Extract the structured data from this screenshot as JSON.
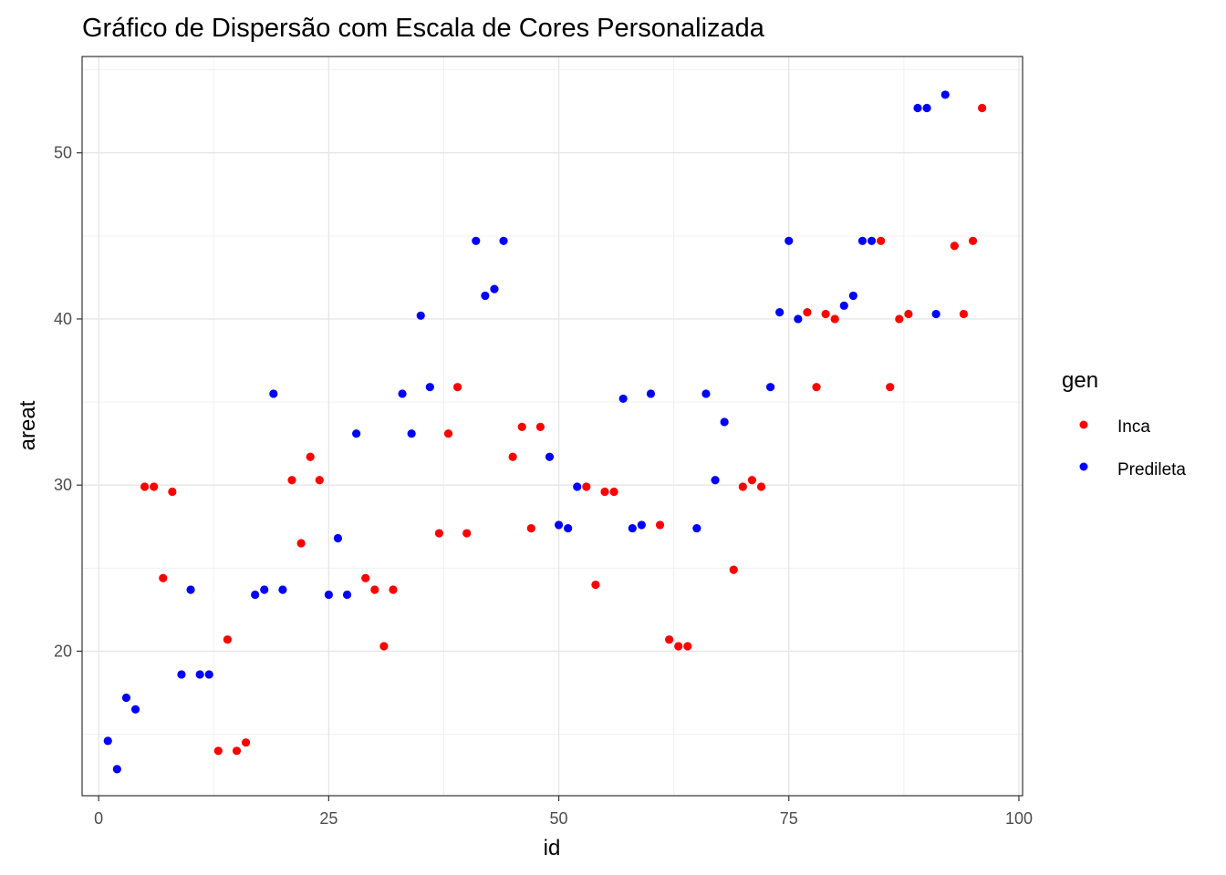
{
  "chart_data": {
    "type": "scatter",
    "title": "Gráfico de Dispersão com Escala de Cores Personalizada",
    "xlabel": "id",
    "ylabel": "areat",
    "xlim": [
      -1.8,
      100.4
    ],
    "ylim": [
      11.3,
      55.8
    ],
    "x_ticks": [
      0,
      25,
      50,
      75,
      100
    ],
    "x_tick_labels": [
      "0",
      "25",
      "50",
      "75",
      "100"
    ],
    "y_ticks": [
      20,
      30,
      40,
      50
    ],
    "y_tick_labels": [
      "20",
      "30",
      "40",
      "50"
    ],
    "grid": true,
    "legend": {
      "title": "gen",
      "position": "right"
    },
    "series": [
      {
        "name": "Inca",
        "color": "#ff0000",
        "points": [
          [
            5,
            29.9
          ],
          [
            6,
            29.9
          ],
          [
            7,
            24.4
          ],
          [
            8,
            29.6
          ],
          [
            13,
            14.0
          ],
          [
            14,
            20.7
          ],
          [
            15,
            14.0
          ],
          [
            16,
            14.5
          ],
          [
            21,
            30.3
          ],
          [
            22,
            26.5
          ],
          [
            23,
            31.7
          ],
          [
            24,
            30.3
          ],
          [
            29,
            24.4
          ],
          [
            30,
            23.7
          ],
          [
            31,
            20.3
          ],
          [
            32,
            23.7
          ],
          [
            37,
            27.1
          ],
          [
            38,
            33.1
          ],
          [
            39,
            35.9
          ],
          [
            40,
            27.1
          ],
          [
            45,
            31.7
          ],
          [
            46,
            33.5
          ],
          [
            47,
            27.4
          ],
          [
            48,
            33.5
          ],
          [
            53,
            29.9
          ],
          [
            54,
            24.0
          ],
          [
            55,
            29.6
          ],
          [
            56,
            29.6
          ],
          [
            61,
            27.6
          ],
          [
            62,
            20.7
          ],
          [
            63,
            20.3
          ],
          [
            64,
            20.3
          ],
          [
            69,
            24.9
          ],
          [
            70,
            29.9
          ],
          [
            71,
            30.3
          ],
          [
            72,
            29.9
          ],
          [
            77,
            40.4
          ],
          [
            78,
            35.9
          ],
          [
            79,
            40.3
          ],
          [
            80,
            40.0
          ],
          [
            85,
            44.7
          ],
          [
            86,
            35.9
          ],
          [
            87,
            40.0
          ],
          [
            88,
            40.3
          ],
          [
            93,
            44.4
          ],
          [
            94,
            40.3
          ],
          [
            95,
            44.7
          ],
          [
            96,
            52.7
          ]
        ]
      },
      {
        "name": "Predileta",
        "color": "#0000ff",
        "points": [
          [
            1,
            14.6
          ],
          [
            2,
            12.9
          ],
          [
            3,
            17.2
          ],
          [
            4,
            16.5
          ],
          [
            9,
            18.6
          ],
          [
            10,
            23.7
          ],
          [
            11,
            18.6
          ],
          [
            12,
            18.6
          ],
          [
            17,
            23.4
          ],
          [
            18,
            23.7
          ],
          [
            19,
            35.5
          ],
          [
            20,
            23.7
          ],
          [
            25,
            23.4
          ],
          [
            26,
            26.8
          ],
          [
            27,
            23.4
          ],
          [
            28,
            33.1
          ],
          [
            33,
            35.5
          ],
          [
            34,
            33.1
          ],
          [
            35,
            40.2
          ],
          [
            36,
            35.9
          ],
          [
            41,
            44.7
          ],
          [
            42,
            41.4
          ],
          [
            43,
            41.8
          ],
          [
            44,
            44.7
          ],
          [
            49,
            31.7
          ],
          [
            50,
            27.6
          ],
          [
            51,
            27.4
          ],
          [
            52,
            29.9
          ],
          [
            57,
            35.2
          ],
          [
            58,
            27.4
          ],
          [
            59,
            27.6
          ],
          [
            60,
            35.5
          ],
          [
            65,
            27.4
          ],
          [
            66,
            35.5
          ],
          [
            67,
            30.3
          ],
          [
            68,
            33.8
          ],
          [
            73,
            35.9
          ],
          [
            74,
            40.4
          ],
          [
            75,
            44.7
          ],
          [
            76,
            40.0
          ],
          [
            81,
            40.8
          ],
          [
            82,
            41.4
          ],
          [
            83,
            44.7
          ],
          [
            84,
            44.7
          ],
          [
            89,
            52.7
          ],
          [
            90,
            52.7
          ],
          [
            91,
            40.3
          ],
          [
            92,
            53.5
          ]
        ]
      }
    ]
  }
}
